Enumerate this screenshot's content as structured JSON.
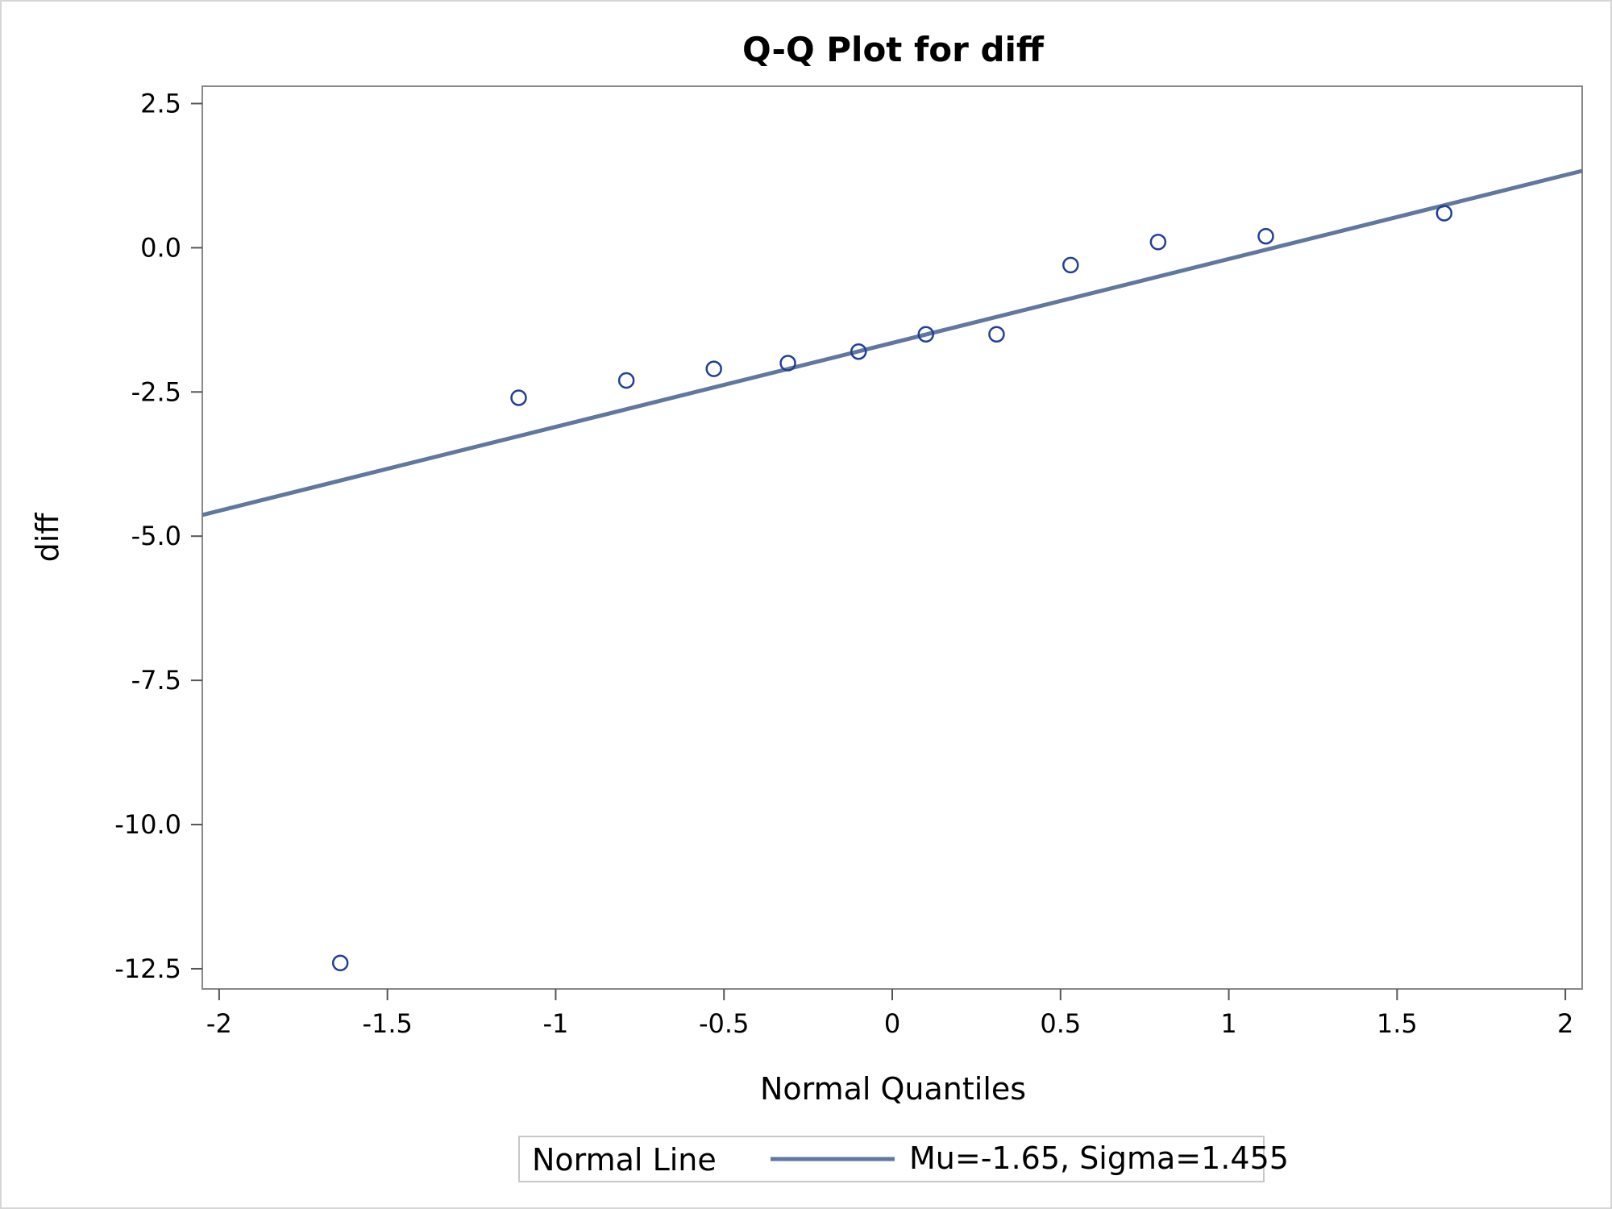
{
  "chart_data": {
    "type": "scatter",
    "title": "Q-Q Plot for diff",
    "xlabel": "Normal Quantiles",
    "ylabel": "diff",
    "xlim": [
      -2.05,
      2.05
    ],
    "ylim": [
      -12.85,
      2.8
    ],
    "xticks": [
      -2,
      -1.5,
      -1,
      -0.5,
      0,
      0.5,
      1,
      1.5,
      2
    ],
    "xtick_labels": [
      "-2",
      "-1.5",
      "-1",
      "-0.5",
      "0",
      "0.5",
      "1",
      "1.5",
      "2"
    ],
    "yticks": [
      2.5,
      0,
      -2.5,
      -5,
      -7.5,
      -10,
      -12.5
    ],
    "ytick_labels": [
      "2.5",
      "0.0",
      "-2.5",
      "-5.0",
      "-7.5",
      "-10.0",
      "-12.5"
    ],
    "grid": false,
    "points": {
      "color": "#1f3f99",
      "x": [
        -1.64,
        -1.11,
        -0.79,
        -0.53,
        -0.31,
        -0.1,
        0.1,
        0.31,
        0.53,
        0.79,
        1.11,
        1.64
      ],
      "y": [
        -12.4,
        -2.6,
        -2.3,
        -2.1,
        -2.0,
        -1.8,
        -1.5,
        -1.5,
        -0.3,
        0.1,
        0.2,
        0.6
      ]
    },
    "normal_line": {
      "color": "#6077a0",
      "mu": -1.65,
      "sigma": 1.455
    },
    "legend": {
      "position": "bottom",
      "title": "Normal Line",
      "entry": "Mu=-1.65, Sigma=1.455"
    }
  }
}
